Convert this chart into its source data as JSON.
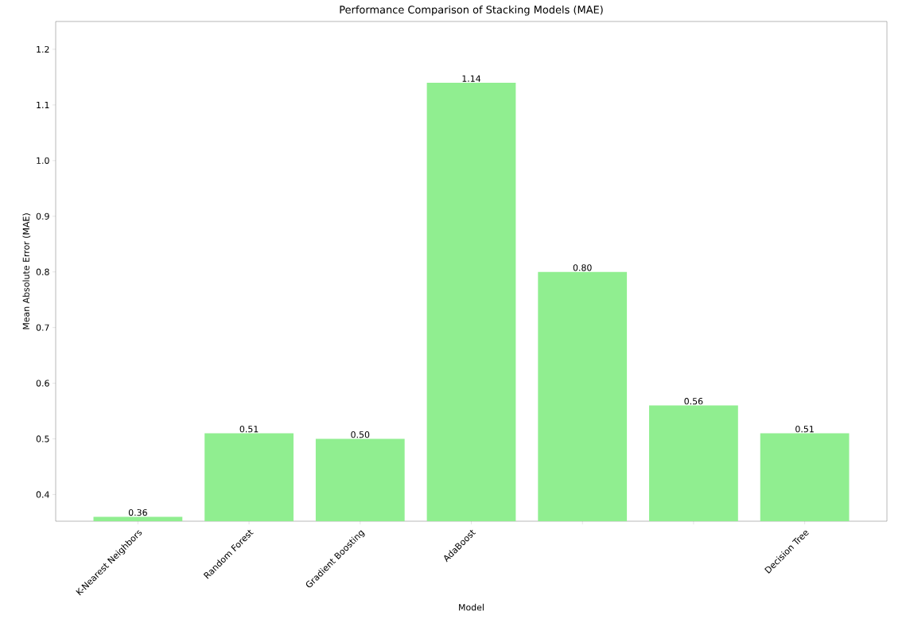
{
  "chart_data": {
    "type": "bar",
    "title": "Performance Comparison of Stacking Models (MAE)",
    "xlabel": "Model",
    "ylabel": "Mean Absolute Error (MAE)",
    "categories": [
      "K-Nearest Neighbors",
      "Random Forest",
      "Gradient Boosting",
      "AdaBoost",
      null,
      null,
      "Decision Tree"
    ],
    "values": [
      0.36,
      0.51,
      0.5,
      1.14,
      0.8,
      0.56,
      0.51
    ],
    "value_labels": [
      "0.36",
      "0.51",
      "0.50",
      "1.14",
      "0.80",
      "0.56",
      "0.51"
    ],
    "color": "#90ee90",
    "ylim": [
      0.352,
      1.25
    ],
    "yticks": [
      0.4,
      0.5,
      0.6,
      0.7,
      0.8,
      0.9,
      {
        "value": 1.0,
        "label": "1.0"
      },
      1.1,
      1.2
    ],
    "grid": false
  }
}
